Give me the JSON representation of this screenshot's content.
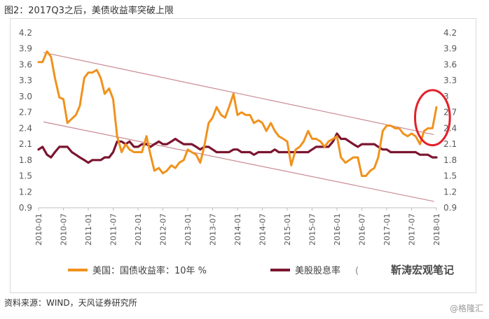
{
  "figure_caption": "图2：2017Q3之后，美债收益率突破上限",
  "source_note": "资料来源：WIND，天风证券研究所",
  "corner_watermark": "@格隆汇",
  "legend_watermark": "靳涛宏观笔记",
  "legend_watermark_prefix": "(",
  "colors": {
    "us_yield": "#F0921D",
    "div_yield": "#7B1530",
    "channel": "#C98A92",
    "highlight": "#E3202A"
  },
  "chart_data": {
    "type": "line",
    "x_ticks": [
      "2010-01",
      "2010-07",
      "2011-01",
      "2011-07",
      "2012-01",
      "2012-07",
      "2013-01",
      "2013-07",
      "2014-01",
      "2014-07",
      "2015-01",
      "2015-07",
      "2016-01",
      "2016-07",
      "2017-01",
      "2017-07",
      "2018-01"
    ],
    "y_left": {
      "min": 0.9,
      "max": 4.2,
      "ticks": [
        "0.9",
        "1.2",
        "1.5",
        "1.8",
        "2.1",
        "2.4",
        "2.7",
        "3.0",
        "3.3",
        "3.6",
        "3.9",
        "4.2"
      ]
    },
    "y_right": {
      "min": 0.9,
      "max": 4.2,
      "ticks": [
        "0.9",
        "1.2",
        "1.5",
        "1.8",
        "2.1",
        "2.4",
        "2.7",
        "3",
        "3.3",
        "3.6",
        "3.9",
        "4.2"
      ]
    },
    "x_range": [
      2010.0,
      2018.0
    ],
    "series": [
      {
        "name": "美国：国债收益率：10年 %",
        "color": "#F0921D",
        "x": [
          2010.0,
          2010.08,
          2010.17,
          2010.25,
          2010.33,
          2010.42,
          2010.5,
          2010.58,
          2010.67,
          2010.75,
          2010.83,
          2010.92,
          2011.0,
          2011.08,
          2011.17,
          2011.25,
          2011.33,
          2011.42,
          2011.5,
          2011.58,
          2011.67,
          2011.75,
          2011.83,
          2011.92,
          2012.0,
          2012.08,
          2012.17,
          2012.25,
          2012.33,
          2012.42,
          2012.5,
          2012.58,
          2012.67,
          2012.75,
          2012.83,
          2012.92,
          2013.0,
          2013.08,
          2013.17,
          2013.25,
          2013.33,
          2013.42,
          2013.5,
          2013.58,
          2013.67,
          2013.75,
          2013.83,
          2013.92,
          2014.0,
          2014.08,
          2014.17,
          2014.25,
          2014.33,
          2014.42,
          2014.5,
          2014.58,
          2014.67,
          2014.75,
          2014.83,
          2014.92,
          2015.0,
          2015.08,
          2015.17,
          2015.25,
          2015.33,
          2015.42,
          2015.5,
          2015.58,
          2015.67,
          2015.75,
          2015.83,
          2015.92,
          2016.0,
          2016.08,
          2016.17,
          2016.25,
          2016.33,
          2016.42,
          2016.5,
          2016.58,
          2016.67,
          2016.75,
          2016.83,
          2016.92,
          2017.0,
          2017.08,
          2017.17,
          2017.25,
          2017.33,
          2017.42,
          2017.5,
          2017.58,
          2017.67,
          2017.75,
          2017.83,
          2017.92,
          2018.0
        ],
        "y": [
          3.65,
          3.65,
          3.85,
          3.75,
          3.35,
          2.98,
          2.95,
          2.5,
          2.58,
          2.65,
          2.82,
          3.35,
          3.45,
          3.45,
          3.5,
          3.35,
          3.05,
          3.15,
          2.95,
          2.25,
          1.95,
          2.1,
          2.0,
          1.95,
          1.95,
          1.95,
          2.25,
          1.9,
          1.6,
          1.65,
          1.55,
          1.6,
          1.7,
          1.65,
          1.75,
          1.8,
          2.0,
          1.95,
          1.9,
          1.75,
          2.05,
          2.5,
          2.6,
          2.8,
          2.65,
          2.6,
          2.8,
          3.05,
          2.65,
          2.7,
          2.65,
          2.65,
          2.5,
          2.55,
          2.5,
          2.35,
          2.5,
          2.35,
          2.25,
          2.2,
          2.15,
          1.7,
          2.0,
          2.05,
          2.15,
          2.35,
          2.2,
          2.2,
          2.15,
          2.05,
          2.15,
          2.2,
          2.25,
          1.85,
          1.75,
          1.8,
          1.85,
          1.85,
          1.5,
          1.5,
          1.6,
          1.65,
          1.85,
          2.35,
          2.45,
          2.45,
          2.4,
          2.4,
          2.3,
          2.25,
          2.3,
          2.25,
          2.1,
          2.35,
          2.4,
          2.4,
          2.8
        ]
      },
      {
        "name": "美股股息率",
        "color": "#7B1530",
        "x": [
          2010.0,
          2010.08,
          2010.17,
          2010.25,
          2010.33,
          2010.42,
          2010.5,
          2010.58,
          2010.67,
          2010.75,
          2010.83,
          2010.92,
          2011.0,
          2011.08,
          2011.17,
          2011.25,
          2011.33,
          2011.42,
          2011.5,
          2011.58,
          2011.67,
          2011.75,
          2011.83,
          2011.92,
          2012.0,
          2012.08,
          2012.17,
          2012.25,
          2012.33,
          2012.42,
          2012.5,
          2012.58,
          2012.67,
          2012.75,
          2012.83,
          2012.92,
          2013.0,
          2013.08,
          2013.17,
          2013.25,
          2013.33,
          2013.42,
          2013.5,
          2013.58,
          2013.67,
          2013.75,
          2013.83,
          2013.92,
          2014.0,
          2014.08,
          2014.17,
          2014.25,
          2014.33,
          2014.42,
          2014.5,
          2014.58,
          2014.67,
          2014.75,
          2014.83,
          2014.92,
          2015.0,
          2015.08,
          2015.17,
          2015.25,
          2015.33,
          2015.42,
          2015.5,
          2015.58,
          2015.67,
          2015.75,
          2015.83,
          2015.92,
          2016.0,
          2016.08,
          2016.17,
          2016.25,
          2016.33,
          2016.42,
          2016.5,
          2016.58,
          2016.67,
          2016.75,
          2016.83,
          2016.92,
          2017.0,
          2017.08,
          2017.17,
          2017.25,
          2017.33,
          2017.42,
          2017.5,
          2017.58,
          2017.67,
          2017.75,
          2017.83,
          2017.92,
          2018.0
        ],
        "y": [
          2.0,
          2.05,
          1.9,
          1.85,
          1.95,
          2.05,
          2.05,
          2.05,
          1.95,
          1.9,
          1.85,
          1.8,
          1.75,
          1.8,
          1.8,
          1.8,
          1.85,
          1.85,
          1.95,
          2.15,
          2.15,
          2.1,
          2.15,
          2.05,
          2.05,
          2.1,
          2.1,
          2.05,
          2.1,
          2.15,
          2.1,
          2.1,
          2.15,
          2.2,
          2.15,
          2.1,
          2.1,
          2.1,
          2.05,
          2.0,
          2.05,
          2.05,
          2.0,
          1.95,
          1.95,
          1.95,
          1.95,
          2.0,
          2.0,
          1.95,
          1.95,
          1.95,
          1.9,
          1.95,
          1.95,
          1.95,
          1.95,
          2.0,
          1.95,
          1.95,
          1.95,
          1.95,
          1.95,
          1.95,
          1.95,
          1.95,
          2.0,
          2.05,
          2.05,
          2.05,
          2.05,
          2.15,
          2.3,
          2.2,
          2.2,
          2.15,
          2.1,
          2.05,
          2.1,
          2.1,
          2.1,
          2.1,
          2.05,
          2.0,
          2.0,
          1.95,
          1.95,
          1.95,
          1.95,
          1.95,
          1.95,
          1.95,
          1.9,
          1.9,
          1.9,
          1.85,
          1.85
        ]
      }
    ],
    "channel_lines": [
      {
        "x": [
          2010.1,
          2017.95
        ],
        "y": [
          3.83,
          2.28
        ]
      },
      {
        "x": [
          2010.1,
          2017.95
        ],
        "y": [
          2.52,
          1.02
        ]
      }
    ],
    "highlight_ellipse": {
      "cx": 2017.92,
      "cy": 2.6,
      "rx": 0.35,
      "ry": 0.52
    },
    "legend_position": "bottom"
  }
}
